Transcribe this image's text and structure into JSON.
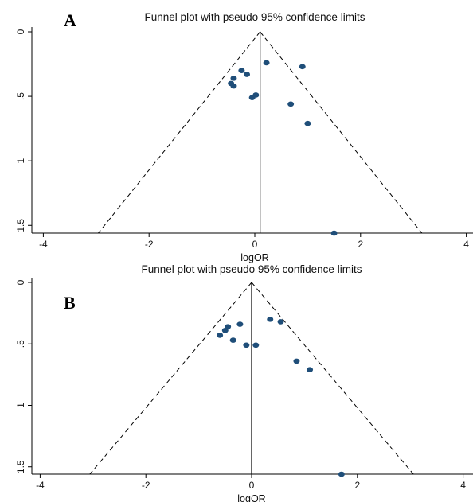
{
  "chart_data": [
    {
      "type": "scatter",
      "panel_label": "A",
      "title": "Funnel plot with pseudo 95% confidence limits",
      "xlabel": "logOR",
      "ylabel": "",
      "xlim": [
        -4,
        4
      ],
      "ylim": [
        1.56,
        0
      ],
      "y_reversed": true,
      "xticks": [
        -4,
        -2,
        0,
        2,
        4
      ],
      "yticks": [
        0,
        0.5,
        1,
        1.5
      ],
      "ytick_labels": [
        "0",
        ".5",
        "1",
        "1.5"
      ],
      "grid": false,
      "summary_logOR": 0.1,
      "funnel_lower": [
        {
          "x": 0.1,
          "y": 0
        },
        {
          "x": -2.96,
          "y": 1.56
        }
      ],
      "funnel_upper": [
        {
          "x": 0.1,
          "y": 0
        },
        {
          "x": 3.16,
          "y": 1.56
        }
      ],
      "point_color": "#1f4e79",
      "points": [
        {
          "x": -0.25,
          "y": 0.3
        },
        {
          "x": -0.4,
          "y": 0.36
        },
        {
          "x": -0.15,
          "y": 0.33
        },
        {
          "x": -0.45,
          "y": 0.4
        },
        {
          "x": -0.4,
          "y": 0.42
        },
        {
          "x": 0.22,
          "y": 0.24
        },
        {
          "x": 0.9,
          "y": 0.27
        },
        {
          "x": 0.02,
          "y": 0.49
        },
        {
          "x": -0.05,
          "y": 0.51
        },
        {
          "x": 0.68,
          "y": 0.56
        },
        {
          "x": 1.0,
          "y": 0.71
        },
        {
          "x": 1.5,
          "y": 1.56
        }
      ]
    },
    {
      "type": "scatter",
      "panel_label": "B",
      "title": "Funnel plot with pseudo 95% confidence limits",
      "xlabel": "logOR",
      "ylabel": "",
      "xlim": [
        -4,
        4
      ],
      "ylim": [
        1.56,
        0
      ],
      "y_reversed": true,
      "xticks": [
        -4,
        -2,
        0,
        2,
        4
      ],
      "yticks": [
        0,
        0.5,
        1,
        1.5
      ],
      "ytick_labels": [
        "0",
        ".5",
        "1",
        "1.5"
      ],
      "grid": false,
      "summary_logOR": 0.0,
      "funnel_lower": [
        {
          "x": 0.0,
          "y": 0
        },
        {
          "x": -3.06,
          "y": 1.56
        }
      ],
      "funnel_upper": [
        {
          "x": 0.0,
          "y": 0
        },
        {
          "x": 3.06,
          "y": 1.56
        }
      ],
      "point_color": "#1f4e79",
      "points": [
        {
          "x": -0.45,
          "y": 0.36
        },
        {
          "x": -0.5,
          "y": 0.39
        },
        {
          "x": -0.22,
          "y": 0.34
        },
        {
          "x": -0.6,
          "y": 0.43
        },
        {
          "x": -0.35,
          "y": 0.47
        },
        {
          "x": 0.35,
          "y": 0.3
        },
        {
          "x": 0.55,
          "y": 0.32
        },
        {
          "x": -0.1,
          "y": 0.51
        },
        {
          "x": 0.08,
          "y": 0.51
        },
        {
          "x": 0.85,
          "y": 0.64
        },
        {
          "x": 1.1,
          "y": 0.71
        },
        {
          "x": 1.7,
          "y": 1.56
        }
      ]
    }
  ]
}
